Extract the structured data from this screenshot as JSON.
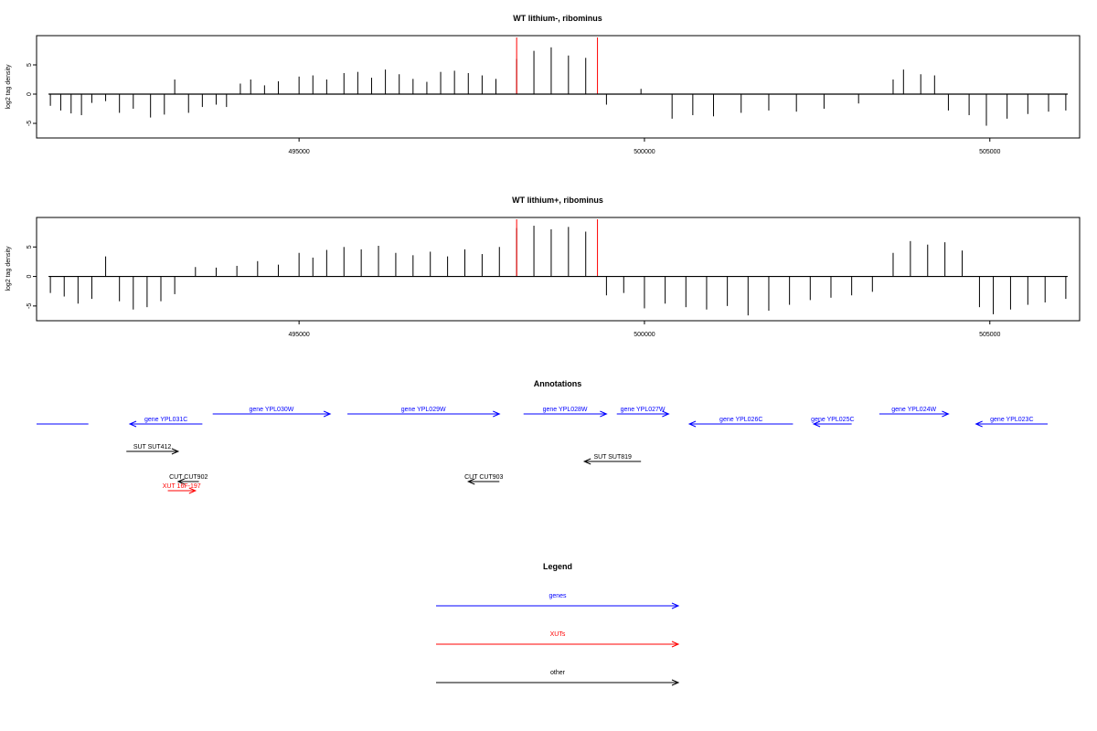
{
  "colors": {
    "gene": "#0000ff",
    "xut": "#ff0000",
    "other": "#000000",
    "region_marker": "#ff0000"
  },
  "chart_data": [
    {
      "type": "bar",
      "title": "WT lithium-, ribominus",
      "ylabel": "log2 tag density",
      "xlim": [
        491200,
        506300
      ],
      "ylim": [
        -7.5,
        10
      ],
      "xticks": [
        495000,
        500000,
        505000
      ],
      "xtick_labels": [
        "495000",
        "500000",
        "505000"
      ],
      "yticks": [
        -5,
        0,
        5
      ],
      "ytick_labels": [
        "-5",
        "0",
        "5"
      ],
      "region_markers": [
        498150,
        499320
      ],
      "bars": [
        {
          "x": 491400,
          "y": -2.0
        },
        {
          "x": 491550,
          "y": -2.8
        },
        {
          "x": 491700,
          "y": -3.3
        },
        {
          "x": 491850,
          "y": -3.6
        },
        {
          "x": 492000,
          "y": -1.5
        },
        {
          "x": 492200,
          "y": -1.2
        },
        {
          "x": 492400,
          "y": -3.2
        },
        {
          "x": 492600,
          "y": -2.5
        },
        {
          "x": 492850,
          "y": -4.0
        },
        {
          "x": 493050,
          "y": -3.5
        },
        {
          "x": 493200,
          "y": 2.5
        },
        {
          "x": 493400,
          "y": -3.2
        },
        {
          "x": 493600,
          "y": -2.2
        },
        {
          "x": 493800,
          "y": -1.8
        },
        {
          "x": 493950,
          "y": -2.2
        },
        {
          "x": 494150,
          "y": 1.8
        },
        {
          "x": 494300,
          "y": 2.5
        },
        {
          "x": 494500,
          "y": 1.5
        },
        {
          "x": 494700,
          "y": 2.2
        },
        {
          "x": 495000,
          "y": 3.0
        },
        {
          "x": 495200,
          "y": 3.2
        },
        {
          "x": 495400,
          "y": 2.5
        },
        {
          "x": 495650,
          "y": 3.6
        },
        {
          "x": 495850,
          "y": 3.8
        },
        {
          "x": 496050,
          "y": 2.8
        },
        {
          "x": 496250,
          "y": 4.2
        },
        {
          "x": 496450,
          "y": 3.4
        },
        {
          "x": 496650,
          "y": 2.6
        },
        {
          "x": 496850,
          "y": 2.1
        },
        {
          "x": 497050,
          "y": 3.8
        },
        {
          "x": 497250,
          "y": 4.0
        },
        {
          "x": 497450,
          "y": 3.6
        },
        {
          "x": 497650,
          "y": 3.2
        },
        {
          "x": 497850,
          "y": 2.6
        },
        {
          "x": 498150,
          "y": 6.0
        },
        {
          "x": 498400,
          "y": 7.4
        },
        {
          "x": 498650,
          "y": 8.0
        },
        {
          "x": 498900,
          "y": 6.6
        },
        {
          "x": 499150,
          "y": 6.2
        },
        {
          "x": 499450,
          "y": -1.8
        },
        {
          "x": 499950,
          "y": 0.9
        },
        {
          "x": 500400,
          "y": -4.2
        },
        {
          "x": 500700,
          "y": -3.6
        },
        {
          "x": 501000,
          "y": -3.8
        },
        {
          "x": 501400,
          "y": -3.2
        },
        {
          "x": 501800,
          "y": -2.8
        },
        {
          "x": 502200,
          "y": -3.0
        },
        {
          "x": 502600,
          "y": -2.5
        },
        {
          "x": 503100,
          "y": -1.6
        },
        {
          "x": 503600,
          "y": 2.5
        },
        {
          "x": 503750,
          "y": 4.2
        },
        {
          "x": 504000,
          "y": 3.4
        },
        {
          "x": 504200,
          "y": 3.2
        },
        {
          "x": 504400,
          "y": -2.8
        },
        {
          "x": 504700,
          "y": -3.6
        },
        {
          "x": 504950,
          "y": -5.4
        },
        {
          "x": 505250,
          "y": -4.2
        },
        {
          "x": 505550,
          "y": -3.4
        },
        {
          "x": 505850,
          "y": -3.0
        },
        {
          "x": 506100,
          "y": -2.8
        }
      ]
    },
    {
      "type": "bar",
      "title": "WT lithium+, ribominus",
      "ylabel": "log2 tag density",
      "xlim": [
        491200,
        506300
      ],
      "ylim": [
        -7.5,
        10
      ],
      "xticks": [
        495000,
        500000,
        505000
      ],
      "xtick_labels": [
        "495000",
        "500000",
        "505000"
      ],
      "yticks": [
        -5,
        0,
        5
      ],
      "ytick_labels": [
        "-5",
        "0",
        "5"
      ],
      "region_markers": [
        498150,
        499320
      ],
      "bars": [
        {
          "x": 491400,
          "y": -2.8
        },
        {
          "x": 491600,
          "y": -3.4
        },
        {
          "x": 491800,
          "y": -4.6
        },
        {
          "x": 492000,
          "y": -3.8
        },
        {
          "x": 492200,
          "y": 3.4
        },
        {
          "x": 492400,
          "y": -4.2
        },
        {
          "x": 492600,
          "y": -5.6
        },
        {
          "x": 492800,
          "y": -5.2
        },
        {
          "x": 493000,
          "y": -4.2
        },
        {
          "x": 493200,
          "y": -3.0
        },
        {
          "x": 493500,
          "y": 1.6
        },
        {
          "x": 493800,
          "y": 1.5
        },
        {
          "x": 494100,
          "y": 1.8
        },
        {
          "x": 494400,
          "y": 2.6
        },
        {
          "x": 494700,
          "y": 2.0
        },
        {
          "x": 495000,
          "y": 4.0
        },
        {
          "x": 495200,
          "y": 3.2
        },
        {
          "x": 495400,
          "y": 4.5
        },
        {
          "x": 495650,
          "y": 5.0
        },
        {
          "x": 495900,
          "y": 4.6
        },
        {
          "x": 496150,
          "y": 5.2
        },
        {
          "x": 496400,
          "y": 4.0
        },
        {
          "x": 496650,
          "y": 3.6
        },
        {
          "x": 496900,
          "y": 4.2
        },
        {
          "x": 497150,
          "y": 3.4
        },
        {
          "x": 497400,
          "y": 4.6
        },
        {
          "x": 497650,
          "y": 3.8
        },
        {
          "x": 497900,
          "y": 5.0
        },
        {
          "x": 498150,
          "y": 8.2
        },
        {
          "x": 498400,
          "y": 8.6
        },
        {
          "x": 498650,
          "y": 8.0
        },
        {
          "x": 498900,
          "y": 8.4
        },
        {
          "x": 499150,
          "y": 7.6
        },
        {
          "x": 499450,
          "y": -3.2
        },
        {
          "x": 499700,
          "y": -2.8
        },
        {
          "x": 500000,
          "y": -5.4
        },
        {
          "x": 500300,
          "y": -4.6
        },
        {
          "x": 500600,
          "y": -5.2
        },
        {
          "x": 500900,
          "y": -5.6
        },
        {
          "x": 501200,
          "y": -5.0
        },
        {
          "x": 501500,
          "y": -6.6
        },
        {
          "x": 501800,
          "y": -5.8
        },
        {
          "x": 502100,
          "y": -4.8
        },
        {
          "x": 502400,
          "y": -4.0
        },
        {
          "x": 502700,
          "y": -3.6
        },
        {
          "x": 503000,
          "y": -3.2
        },
        {
          "x": 503300,
          "y": -2.6
        },
        {
          "x": 503600,
          "y": 4.0
        },
        {
          "x": 503850,
          "y": 6.0
        },
        {
          "x": 504100,
          "y": 5.4
        },
        {
          "x": 504350,
          "y": 5.8
        },
        {
          "x": 504600,
          "y": 4.4
        },
        {
          "x": 504850,
          "y": -5.2
        },
        {
          "x": 505050,
          "y": -6.4
        },
        {
          "x": 505300,
          "y": -5.6
        },
        {
          "x": 505550,
          "y": -4.8
        },
        {
          "x": 505800,
          "y": -4.4
        },
        {
          "x": 506100,
          "y": -3.8
        }
      ]
    }
  ],
  "annotations": {
    "title": "Annotations",
    "items": [
      {
        "label": "",
        "type": "gene",
        "start": 491200,
        "end": 491950,
        "dir": "none",
        "row": 0
      },
      {
        "label": "gene YPL031C",
        "type": "gene",
        "start": 492550,
        "end": 493600,
        "dir": "left",
        "row": 0
      },
      {
        "label": "gene YPL030W",
        "type": "gene",
        "start": 493750,
        "end": 495450,
        "dir": "right",
        "row": 1
      },
      {
        "label": "gene YPL029W",
        "type": "gene",
        "start": 495700,
        "end": 497900,
        "dir": "right",
        "row": 1
      },
      {
        "label": "gene YPL028W",
        "type": "gene",
        "start": 498250,
        "end": 499450,
        "dir": "right",
        "row": 1
      },
      {
        "label": "gene YPL027W",
        "type": "gene",
        "start": 499600,
        "end": 500350,
        "dir": "right",
        "row": 1
      },
      {
        "label": "gene YPL026C",
        "type": "gene",
        "start": 500650,
        "end": 502150,
        "dir": "left",
        "row": 0
      },
      {
        "label": "gene YPL025C",
        "type": "gene",
        "start": 502450,
        "end": 503000,
        "dir": "left",
        "row": 0
      },
      {
        "label": "gene YPL024W",
        "type": "gene",
        "start": 503400,
        "end": 504400,
        "dir": "right",
        "row": 1
      },
      {
        "label": "gene YPL023C",
        "type": "gene",
        "start": 504800,
        "end": 506400,
        "dir": "left",
        "row": 0
      },
      {
        "label": "SUT SUT412",
        "type": "other",
        "start": 492500,
        "end": 493250,
        "dir": "right",
        "row": 2
      },
      {
        "label": "SUT SUT819",
        "type": "other",
        "start": 499130,
        "end": 499950,
        "dir": "left",
        "row": 3
      },
      {
        "label": "CUT CUT902",
        "type": "other",
        "start": 493250,
        "end": 493550,
        "dir": "left",
        "row": 4
      },
      {
        "label": "CUT CUT903",
        "type": "other",
        "start": 497450,
        "end": 497900,
        "dir": "left",
        "row": 4
      },
      {
        "label": "XUT 16F-197",
        "type": "xut",
        "start": 493100,
        "end": 493500,
        "dir": "right",
        "row": 5
      }
    ]
  },
  "legend": {
    "title": "Legend",
    "items": [
      {
        "label": "genes",
        "type": "gene"
      },
      {
        "label": "XUTs",
        "type": "xut"
      },
      {
        "label": "other",
        "type": "other"
      }
    ]
  }
}
